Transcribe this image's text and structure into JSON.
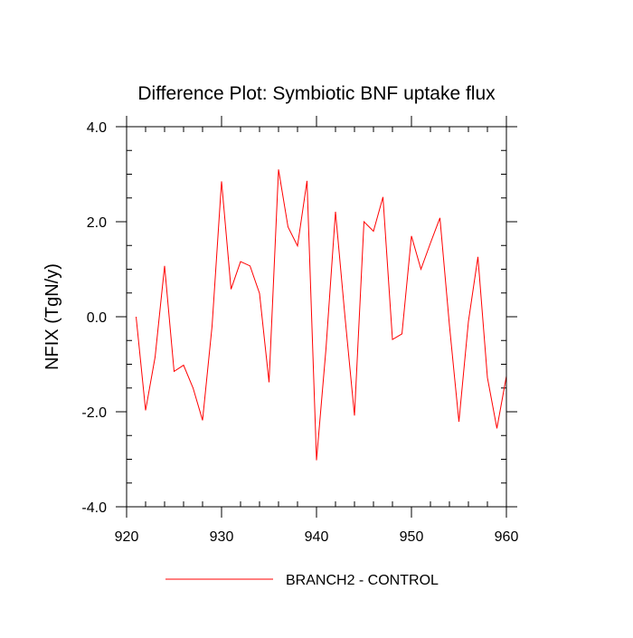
{
  "chart_data": {
    "type": "line",
    "title": "Difference Plot: Symbiotic BNF uptake flux",
    "xlabel": "",
    "ylabel": "NFIX  (TgN/y)",
    "xlim": [
      920,
      960
    ],
    "ylim": [
      -4.0,
      4.0
    ],
    "x_ticks": [
      920,
      930,
      940,
      950,
      960
    ],
    "x_tick_labels": [
      "920",
      "930",
      "940",
      "950",
      "960"
    ],
    "y_ticks": [
      -4.0,
      -2.0,
      0.0,
      2.0,
      4.0
    ],
    "y_tick_labels": [
      "-4.0",
      "-2.0",
      "0.0",
      "2.0",
      "4.0"
    ],
    "x_minor_step": 2,
    "y_minor_step": 0.5,
    "grid": false,
    "legend_position": "bottom-center",
    "series": [
      {
        "name": "BRANCH2 - CONTROL",
        "color": "#ff0000",
        "x": [
          921,
          922,
          923,
          924,
          925,
          926,
          927,
          928,
          929,
          930,
          931,
          932,
          933,
          934,
          935,
          936,
          937,
          938,
          939,
          940,
          941,
          942,
          943,
          944,
          945,
          946,
          947,
          948,
          949,
          950,
          951,
          952,
          953,
          954,
          955,
          956,
          957,
          958,
          959,
          960
        ],
        "y": [
          0.0,
          -1.97,
          -0.85,
          1.07,
          -1.15,
          -1.02,
          -1.5,
          -2.18,
          -0.2,
          2.85,
          0.58,
          1.16,
          1.07,
          0.49,
          -1.38,
          3.1,
          1.89,
          1.49,
          2.86,
          -3.02,
          -0.67,
          2.21,
          0.0,
          -2.08,
          2.0,
          1.8,
          2.52,
          -0.48,
          -0.36,
          1.7,
          1.0,
          1.55,
          2.08,
          -0.18,
          -2.21,
          -0.1,
          1.26,
          -1.28,
          -2.35,
          -1.25
        ]
      }
    ]
  }
}
